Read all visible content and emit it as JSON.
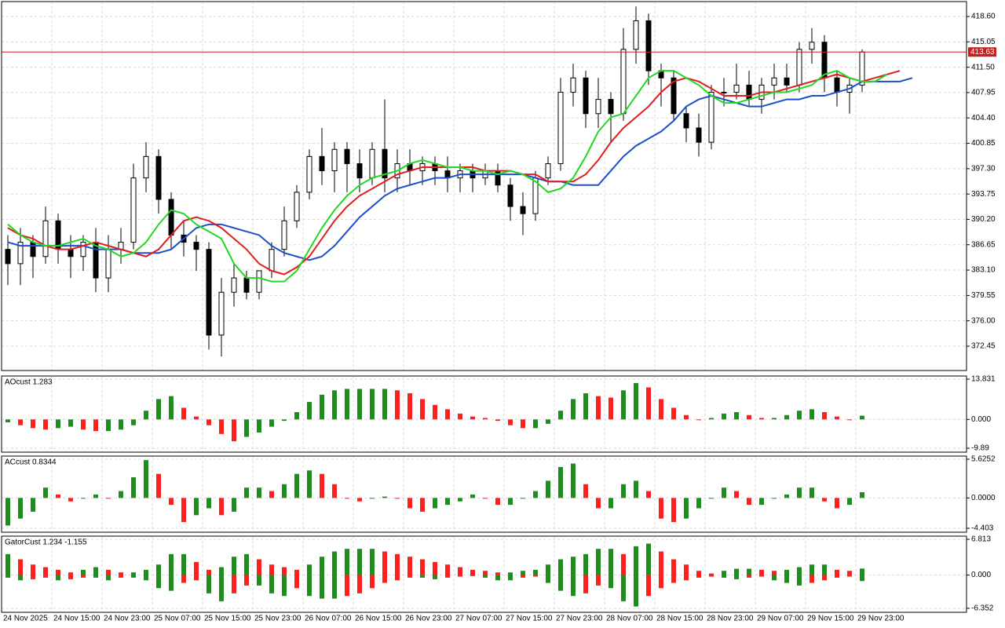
{
  "chart_data": [
    {
      "type": "candlestick",
      "top": 0,
      "ylim": [
        369.04,
        420.69
      ],
      "yticks": [
        {
          "value": 418.6,
          "label": "418.60"
        },
        415.05,
        {
          "value": 411.5,
          "label": "411.50"
        },
        407.95,
        {
          "value": 404.4,
          "label": "404.40"
        },
        400.85,
        {
          "value": 397.3,
          "label": "397.30"
        },
        393.75,
        {
          "value": 390.2,
          "label": "390.20"
        },
        386.65,
        {
          "value": 383.1,
          "label": "383.10"
        },
        379.55,
        {
          "value": 376,
          "label": "376.00"
        },
        372.45
      ],
      "price_line": 413.63,
      "price_color": "#c81e1e",
      "ohlc": [
        [
          386,
          388,
          381,
          384
        ],
        [
          384,
          389,
          381,
          387
        ],
        [
          387,
          388,
          382,
          385
        ],
        [
          385,
          392,
          384,
          390
        ],
        [
          390,
          391,
          384,
          386
        ],
        [
          386,
          388,
          382,
          385
        ],
        [
          385,
          388,
          383,
          387
        ],
        [
          387,
          389,
          380,
          382
        ],
        [
          382,
          388,
          380,
          386
        ],
        [
          386,
          389,
          384,
          387
        ],
        [
          387,
          398,
          386,
          396
        ],
        [
          396,
          401,
          394,
          399
        ],
        [
          399,
          400,
          391,
          393
        ],
        [
          393,
          394,
          386,
          388
        ],
        [
          388,
          390,
          385,
          387
        ],
        [
          387,
          388,
          383,
          386
        ],
        [
          386,
          387,
          372,
          374
        ],
        [
          374,
          382,
          371,
          380
        ],
        [
          380,
          384,
          378,
          382
        ],
        [
          382,
          383,
          379,
          380
        ],
        [
          380,
          383,
          379,
          383
        ],
        [
          383,
          387,
          382,
          386
        ],
        [
          386,
          392,
          385,
          390
        ],
        [
          390,
          395,
          389,
          394
        ],
        [
          394,
          400,
          393,
          399
        ],
        [
          399,
          403,
          395,
          397
        ],
        [
          397,
          401,
          394,
          400
        ],
        [
          400,
          401,
          394,
          398
        ],
        [
          398,
          400,
          394,
          396
        ],
        [
          396,
          401,
          395,
          400
        ],
        [
          400,
          407,
          394,
          396
        ],
        [
          396,
          400,
          394,
          398
        ],
        [
          398,
          400,
          395,
          397
        ],
        [
          397,
          399,
          395,
          398
        ],
        [
          398,
          399,
          395,
          397
        ],
        [
          397,
          399,
          394,
          396
        ],
        [
          396,
          398,
          394,
          397
        ],
        [
          397,
          398,
          394,
          396
        ],
        [
          396,
          398,
          395,
          397
        ],
        [
          397,
          398,
          394,
          395
        ],
        [
          395,
          396,
          390,
          392
        ],
        [
          392,
          394,
          388,
          391
        ],
        [
          391,
          397,
          390,
          396
        ],
        [
          396,
          399,
          395,
          398
        ],
        [
          398,
          410,
          397,
          408
        ],
        [
          408,
          412,
          406,
          410
        ],
        [
          410,
          411,
          403,
          405
        ],
        [
          405,
          410,
          403,
          407
        ],
        [
          407,
          408,
          401,
          405
        ],
        [
          405,
          417,
          404,
          414
        ],
        [
          414,
          420,
          412,
          418
        ],
        [
          418,
          419,
          409,
          411
        ],
        [
          411,
          412,
          406,
          410
        ],
        [
          410,
          411,
          404,
          405
        ],
        [
          405,
          406,
          401,
          403
        ],
        [
          403,
          405,
          399,
          401
        ],
        [
          401,
          409,
          400,
          408
        ],
        [
          408,
          410,
          406,
          408
        ],
        [
          408,
          412,
          407,
          409
        ],
        [
          409,
          411,
          406,
          407
        ],
        [
          407,
          410,
          405,
          409
        ],
        [
          409,
          412,
          407,
          410
        ],
        [
          410,
          412,
          408,
          409
        ],
        [
          409,
          415,
          408,
          414
        ],
        [
          414,
          417,
          412,
          415
        ],
        [
          415,
          416,
          408,
          410
        ],
        [
          410,
          411,
          406,
          408
        ],
        [
          408,
          410,
          405,
          409
        ],
        [
          409,
          414,
          408,
          413.63
        ]
      ],
      "lines": [
        {
          "color": "#1e4fc8",
          "values": [
            387,
            386.5,
            386.5,
            386.5,
            386.5,
            386.5,
            386.5,
            386,
            386,
            386,
            385.5,
            385.5,
            385.5,
            386,
            387.5,
            389,
            389.5,
            389.5,
            389,
            388.5,
            388,
            386.5,
            385.5,
            385,
            384.5,
            385,
            386.5,
            388.5,
            390.5,
            392,
            393.5,
            394.5,
            395,
            395.5,
            396,
            396,
            396.5,
            396.5,
            396.5,
            396.5,
            396.5,
            396.5,
            396,
            395.5,
            395.5,
            395,
            395,
            395,
            397,
            399,
            400.5,
            401.5,
            402.5,
            404,
            406,
            407,
            407.5,
            407,
            406.5,
            406,
            406,
            406.5,
            407,
            407,
            407.5,
            407.5,
            408,
            408.5,
            409.5,
            409.5,
            409.5,
            409.5,
            410
          ]
        },
        {
          "color": "#e01e1e",
          "values": [
            389,
            388,
            387.5,
            386.5,
            386,
            386,
            386.5,
            387,
            386.5,
            386,
            385.5,
            385,
            386,
            388,
            390,
            390.5,
            390,
            389,
            387.5,
            386,
            384,
            383,
            382.5,
            383.5,
            385,
            387.5,
            390,
            392,
            393.5,
            394.5,
            395.5,
            396.5,
            397,
            397.5,
            397.5,
            397.5,
            397.5,
            397.5,
            397,
            397,
            397,
            396.5,
            396.5,
            395.5,
            395.5,
            395.5,
            396.5,
            398.5,
            401,
            403,
            404.5,
            406,
            408,
            409.5,
            410,
            409.5,
            408.5,
            407.5,
            407.5,
            407.5,
            408,
            408,
            408.5,
            409,
            409.5,
            410,
            410.5,
            410,
            409.5,
            410,
            410.5,
            411
          ]
        },
        {
          "color": "#22d822",
          "values": [
            389.5,
            388,
            387,
            386.5,
            386.5,
            387,
            387.5,
            386.5,
            386,
            385,
            385.5,
            387,
            389.5,
            391.5,
            391,
            389.5,
            388.5,
            387.5,
            384,
            382,
            382,
            381.5,
            381.5,
            383,
            386,
            389,
            391.5,
            393.5,
            395,
            396,
            396.5,
            397,
            398,
            398.5,
            398,
            397.5,
            397.5,
            397,
            397,
            396.5,
            397,
            396.5,
            395.5,
            394,
            394.5,
            396,
            399,
            402.5,
            404.5,
            405,
            407.5,
            410,
            411,
            411,
            410,
            409,
            407.5,
            406.5,
            406.5,
            407,
            407.5,
            408,
            408,
            408.5,
            409,
            410.5,
            411,
            410,
            409.5,
            409.5,
            410.5
          ]
        }
      ],
      "xlabels": [
        "24 Nov 2025",
        "24 Nov 15:00",
        "24 Nov 23:00",
        "25 Nov 07:00",
        "25 Nov 15:00",
        "25 Nov 23:00",
        "26 Nov 07:00",
        "26 Nov 15:00",
        "26 Nov 23:00",
        "27 Nov 07:00",
        "27 Nov 15:00",
        "27 Nov 23:00",
        "28 Nov 07:00",
        "28 Nov 15:00",
        "28 Nov 23:00",
        "29 Nov 07:00",
        "29 Nov 15:00",
        "29 Nov 23:00"
      ]
    },
    {
      "type": "bar",
      "title": "AOcust 1.283",
      "top": 477,
      "ylim": [
        -11.25,
        14.92
      ],
      "yticks": [
        13.831,
        {
          "value": 0,
          "label": "0.000"
        },
        -9.89
      ],
      "up_color": "#1e8c1e",
      "down_color": "#ff1e1e",
      "values": [
        -1,
        -2,
        -3,
        -3.5,
        -3,
        -2.5,
        -3.5,
        -4,
        -4,
        -3.5,
        -2,
        3,
        7,
        8,
        4,
        1,
        -2,
        -5,
        -7.5,
        -6,
        -4.5,
        -2.5,
        -0.5,
        2.5,
        6,
        8.5,
        10,
        10.5,
        10.5,
        10.5,
        10.5,
        10,
        9,
        7,
        5,
        3.5,
        2,
        1,
        0.5,
        -0.5,
        -2,
        -3,
        -3,
        -1.5,
        3,
        7,
        9,
        8,
        7.5,
        10,
        12.5,
        11,
        7,
        4,
        1.5,
        0,
        0.5,
        2,
        2.5,
        1.5,
        0.5,
        0.5,
        1.5,
        3,
        3.5,
        2.5,
        1,
        0,
        1.283
      ]
    },
    {
      "type": "bar",
      "title": "ACcust 0.8344",
      "top": 579,
      "ylim": [
        -4.977,
        6.08
      ],
      "yticks": [
        5.6252,
        {
          "value": 0,
          "label": "0.0000"
        },
        -4.403
      ],
      "up_color": "#1e8c1e",
      "down_color": "#ff1e1e",
      "values": [
        -4,
        -3,
        -2,
        1.5,
        0.5,
        -0.5,
        0,
        0.5,
        0,
        1,
        3,
        5.5,
        3.5,
        -1,
        -3.5,
        -2.5,
        -1.5,
        -2.5,
        -2,
        1.5,
        1.5,
        1,
        2,
        3.5,
        4,
        3.5,
        2,
        0,
        -0.5,
        0,
        0.2,
        0,
        -1.5,
        -2,
        -1.5,
        -1,
        -0.5,
        0.5,
        0,
        -1,
        -1,
        0,
        1,
        2.5,
        4.5,
        5,
        2,
        -1.5,
        -1.5,
        2,
        2.5,
        1,
        -3,
        -3.5,
        -3,
        -1.5,
        0,
        1.5,
        1,
        -1,
        -1,
        0,
        0.5,
        1.5,
        1.5,
        -0.5,
        -1.5,
        -1,
        0.8344
      ]
    },
    {
      "type": "gator",
      "title": "GatorCust 1.234 -1.155",
      "top": 681,
      "ylim": [
        -7.11,
        7.42
      ],
      "yticks": [
        6.813,
        {
          "value": 0,
          "label": "0.000"
        },
        -6.352
      ],
      "up_color": "#1e8c1e",
      "down_color": "#ff1e1e",
      "series": [
        {
          "values": [
            4,
            3,
            2,
            1.5,
            1,
            0.5,
            1,
            1.5,
            1,
            0.5,
            0.5,
            1,
            2,
            4,
            4,
            2.5,
            1,
            1.5,
            3.5,
            4,
            3,
            2,
            1.5,
            1,
            2,
            3.5,
            4.5,
            5,
            5,
            5,
            4.5,
            4,
            3.5,
            3,
            2.5,
            2,
            1.5,
            1,
            0.8,
            0.5,
            0.5,
            0.8,
            1,
            2,
            3,
            3.5,
            4,
            5,
            5,
            4,
            5.5,
            6,
            4.5,
            3,
            2,
            0.8,
            0.3,
            0.8,
            1.2,
            1.2,
            1,
            0.8,
            1,
            1.5,
            2,
            2,
            1,
            0.8,
            1.234
          ]
        },
        {
          "values": [
            -0.5,
            -1,
            -0.8,
            -0.5,
            -1,
            -0.8,
            -0.5,
            -0.5,
            -1,
            -0.5,
            -0.5,
            -1,
            -2.5,
            -3,
            -1.5,
            -1,
            -3.5,
            -5,
            -3.5,
            -2,
            -2,
            -3.5,
            -4,
            -2.5,
            -4,
            -4.5,
            -4.5,
            -4,
            -3.5,
            -2.5,
            -1.5,
            -1,
            -0.5,
            -0.5,
            -0.8,
            -0.5,
            -0.3,
            -0.2,
            -0.5,
            -1,
            -1,
            -0.5,
            -0.3,
            -1.5,
            -3,
            -4,
            -3.5,
            -2,
            -2.5,
            -5,
            -6,
            -4,
            -2.5,
            -1.5,
            -1,
            -0.5,
            -0.3,
            -0.5,
            -0.8,
            -0.5,
            -0.3,
            -1,
            -1.5,
            -2,
            -1.5,
            -1,
            -0.5,
            -0.3,
            -1.155
          ]
        }
      ]
    }
  ]
}
